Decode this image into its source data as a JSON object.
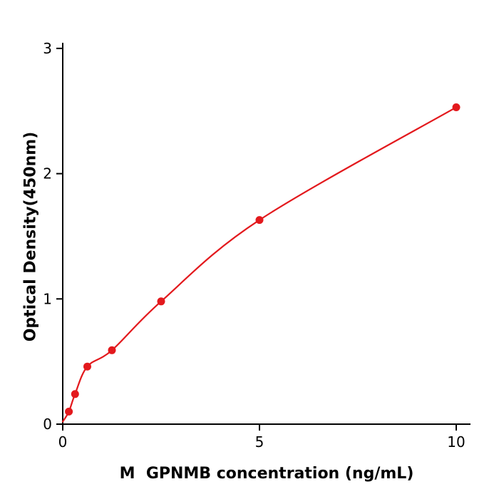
{
  "figure": {
    "background": "#ffffff"
  },
  "chart_data": {
    "type": "scatter",
    "subtype": "scatter-with-fitted-curve",
    "title": "",
    "xlabel": "M  GPNMB concentration (ng/mL)",
    "ylabel": "Optical Density(450nm)",
    "x_ticks": [
      "0",
      "5",
      "10"
    ],
    "x_tick_values": [
      0,
      5,
      10
    ],
    "y_ticks": [
      "0",
      "1",
      "2",
      "3"
    ],
    "y_tick_values": [
      0,
      1,
      2,
      3
    ],
    "xlim": [
      0,
      10.37
    ],
    "ylim": [
      0,
      3.05
    ],
    "grid": false,
    "legend": null,
    "axis_color": "#000000",
    "line_color": "#e3191d",
    "point_color": "#e3191d",
    "curve_start": {
      "x": 0,
      "y": 0.02
    },
    "points": [
      {
        "x": 0.156,
        "y": 0.1
      },
      {
        "x": 0.3125,
        "y": 0.24
      },
      {
        "x": 0.625,
        "y": 0.46
      },
      {
        "x": 1.25,
        "y": 0.59
      },
      {
        "x": 2.5,
        "y": 0.98
      },
      {
        "x": 5,
        "y": 1.63
      },
      {
        "x": 10,
        "y": 2.53
      }
    ]
  }
}
